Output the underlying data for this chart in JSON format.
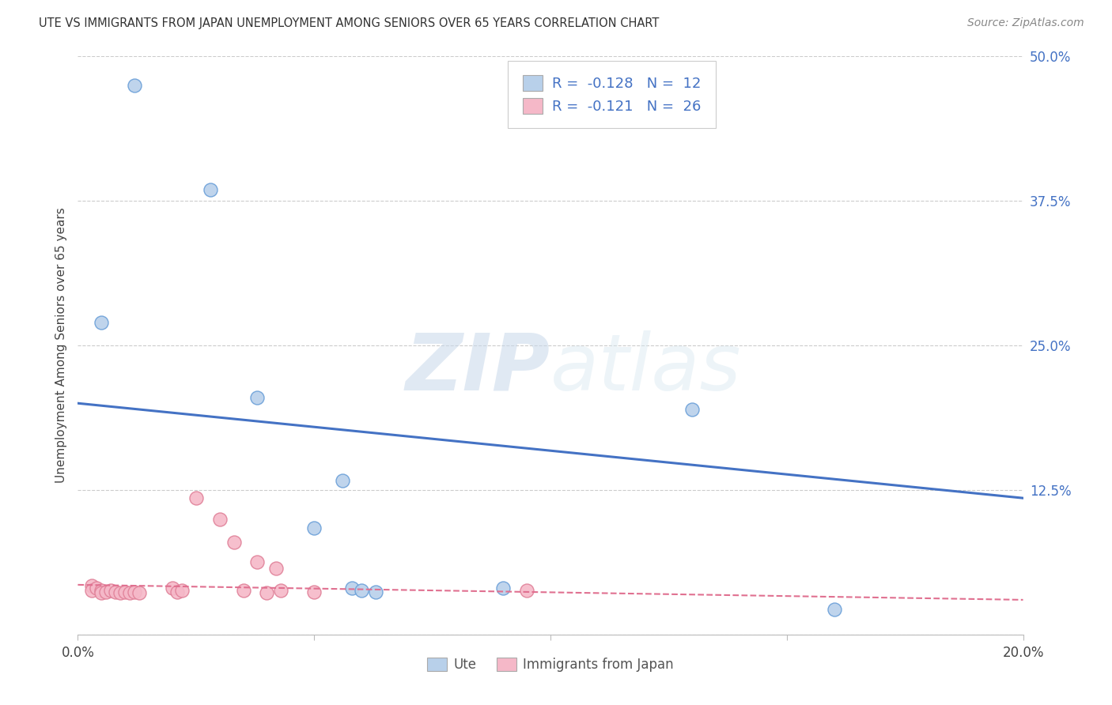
{
  "title": "UTE VS IMMIGRANTS FROM JAPAN UNEMPLOYMENT AMONG SENIORS OVER 65 YEARS CORRELATION CHART",
  "source": "Source: ZipAtlas.com",
  "ylabel": "Unemployment Among Seniors over 65 years",
  "xlim": [
    0.0,
    0.2
  ],
  "ylim": [
    0.0,
    0.5
  ],
  "xticks": [
    0.0,
    0.05,
    0.1,
    0.15,
    0.2
  ],
  "yticks_right": [
    0.0,
    0.125,
    0.25,
    0.375,
    0.5
  ],
  "ytick_labels_right": [
    "",
    "12.5%",
    "25.0%",
    "37.5%",
    "50.0%"
  ],
  "xtick_labels": [
    "0.0%",
    "",
    "",
    "",
    "20.0%"
  ],
  "ute_points": [
    [
      0.012,
      0.475
    ],
    [
      0.005,
      0.27
    ],
    [
      0.028,
      0.385
    ],
    [
      0.038,
      0.205
    ],
    [
      0.056,
      0.133
    ],
    [
      0.05,
      0.092
    ],
    [
      0.058,
      0.04
    ],
    [
      0.06,
      0.038
    ],
    [
      0.063,
      0.037
    ],
    [
      0.09,
      0.04
    ],
    [
      0.13,
      0.195
    ],
    [
      0.16,
      0.022
    ]
  ],
  "japan_points": [
    [
      0.003,
      0.042
    ],
    [
      0.003,
      0.038
    ],
    [
      0.004,
      0.04
    ],
    [
      0.005,
      0.038
    ],
    [
      0.005,
      0.036
    ],
    [
      0.006,
      0.037
    ],
    [
      0.007,
      0.038
    ],
    [
      0.008,
      0.037
    ],
    [
      0.009,
      0.036
    ],
    [
      0.01,
      0.037
    ],
    [
      0.011,
      0.036
    ],
    [
      0.012,
      0.037
    ],
    [
      0.013,
      0.036
    ],
    [
      0.02,
      0.04
    ],
    [
      0.021,
      0.037
    ],
    [
      0.022,
      0.038
    ],
    [
      0.025,
      0.118
    ],
    [
      0.03,
      0.1
    ],
    [
      0.033,
      0.08
    ],
    [
      0.035,
      0.038
    ],
    [
      0.038,
      0.063
    ],
    [
      0.04,
      0.036
    ],
    [
      0.042,
      0.057
    ],
    [
      0.043,
      0.038
    ],
    [
      0.05,
      0.037
    ],
    [
      0.095,
      0.038
    ]
  ],
  "ute_R": -0.128,
  "ute_N": 12,
  "japan_R": -0.121,
  "japan_N": 26,
  "ute_color": "#b8d0ea",
  "ute_edge_color": "#6a9fd8",
  "ute_line_color": "#4472c4",
  "japan_color": "#f5b8c8",
  "japan_edge_color": "#e08098",
  "japan_line_color": "#e07090",
  "ute_trend_x": [
    0.0,
    0.2
  ],
  "ute_trend_y": [
    0.2,
    0.118
  ],
  "japan_trend_x": [
    0.0,
    0.2
  ],
  "japan_trend_y": [
    0.043,
    0.03
  ],
  "watermark_zip": "ZIP",
  "watermark_atlas": "atlas",
  "marker_size": 150,
  "background_color": "#ffffff",
  "grid_color": "#cccccc"
}
